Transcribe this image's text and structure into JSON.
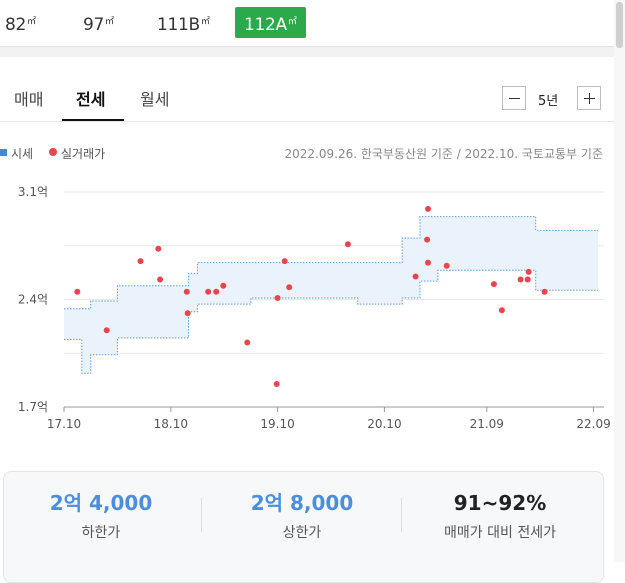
{
  "size_tabs": [
    {
      "label": "82",
      "unit": "㎡",
      "active": false
    },
    {
      "label": "97",
      "unit": "㎡",
      "active": false
    },
    {
      "label": "111B",
      "unit": "㎡",
      "active": false
    },
    {
      "label": "112A",
      "unit": "㎡",
      "active": true
    }
  ],
  "tabs": [
    "매매",
    "전세",
    "월세"
  ],
  "active_tab": "전세",
  "period_control": {
    "minus_icon": "minus-icon",
    "period_label": "5년",
    "plus_icon": "plus-icon"
  },
  "legend": {
    "market_price": "시세",
    "actual_trade": "실거래가",
    "market_color": "#3d8bd9",
    "trade_color": "#e8464f"
  },
  "source_note": "2022.09.26. 한국부동산원 기준 / 2022.10. 국토교통부 기준",
  "chart_data": {
    "type": "scatter",
    "x_tick_labels": [
      "17.10",
      "18.10",
      "19.10",
      "20.10",
      "21.09",
      "22.09"
    ],
    "y_tick_labels": [
      "3.1억",
      "2.4억",
      "1.7억"
    ],
    "ylim": [
      1.7,
      3.1
    ],
    "grid": true,
    "band_color": "#eaf3fb",
    "band_line_color": "#5a9ee0",
    "price_band": {
      "name": "시세",
      "x": [
        0,
        2,
        2,
        3,
        3,
        6,
        6,
        12,
        12,
        14,
        14,
        15,
        15,
        21,
        21,
        33,
        33,
        38,
        38,
        40,
        40,
        42,
        42,
        53,
        53,
        60
      ],
      "lower": [
        2.14,
        2.14,
        1.92,
        1.92,
        2.04,
        2.04,
        2.15,
        2.15,
        2.15,
        2.15,
        2.32,
        2.32,
        2.37,
        2.37,
        2.41,
        2.41,
        2.37,
        2.37,
        2.41,
        2.41,
        2.52,
        2.52,
        2.59,
        2.59,
        2.46,
        2.46
      ],
      "upper": [
        2.34,
        2.34,
        2.34,
        2.34,
        2.39,
        2.39,
        2.49,
        2.49,
        2.49,
        2.49,
        2.57,
        2.57,
        2.64,
        2.64,
        2.64,
        2.64,
        2.64,
        2.64,
        2.8,
        2.8,
        2.94,
        2.94,
        2.94,
        2.94,
        2.85,
        2.85
      ]
    },
    "trades": {
      "name": "실거래가",
      "x": [
        1.5,
        4.8,
        8.6,
        10.6,
        10.8,
        13.8,
        13.9,
        16.2,
        17.1,
        17.9,
        20.6,
        23.9,
        24.0,
        24.8,
        25.3,
        31.9,
        39.5,
        40.9,
        40.8,
        40.9,
        43.0,
        48.3,
        49.2,
        51.3,
        52.1,
        52.2,
        54.0
      ],
      "y": [
        2.45,
        2.2,
        2.65,
        2.73,
        2.53,
        2.45,
        2.31,
        2.45,
        2.45,
        2.49,
        2.12,
        1.85,
        2.41,
        2.65,
        2.48,
        2.76,
        2.55,
        2.64,
        2.79,
        2.99,
        2.62,
        2.5,
        2.33,
        2.53,
        2.53,
        2.58,
        2.45
      ]
    }
  },
  "summary": [
    {
      "value": "2억 4,000",
      "label": "하한가"
    },
    {
      "value": "2억 8,000",
      "label": "상한가"
    },
    {
      "value": "91~92%",
      "label": "매매가 대비 전세가"
    }
  ]
}
